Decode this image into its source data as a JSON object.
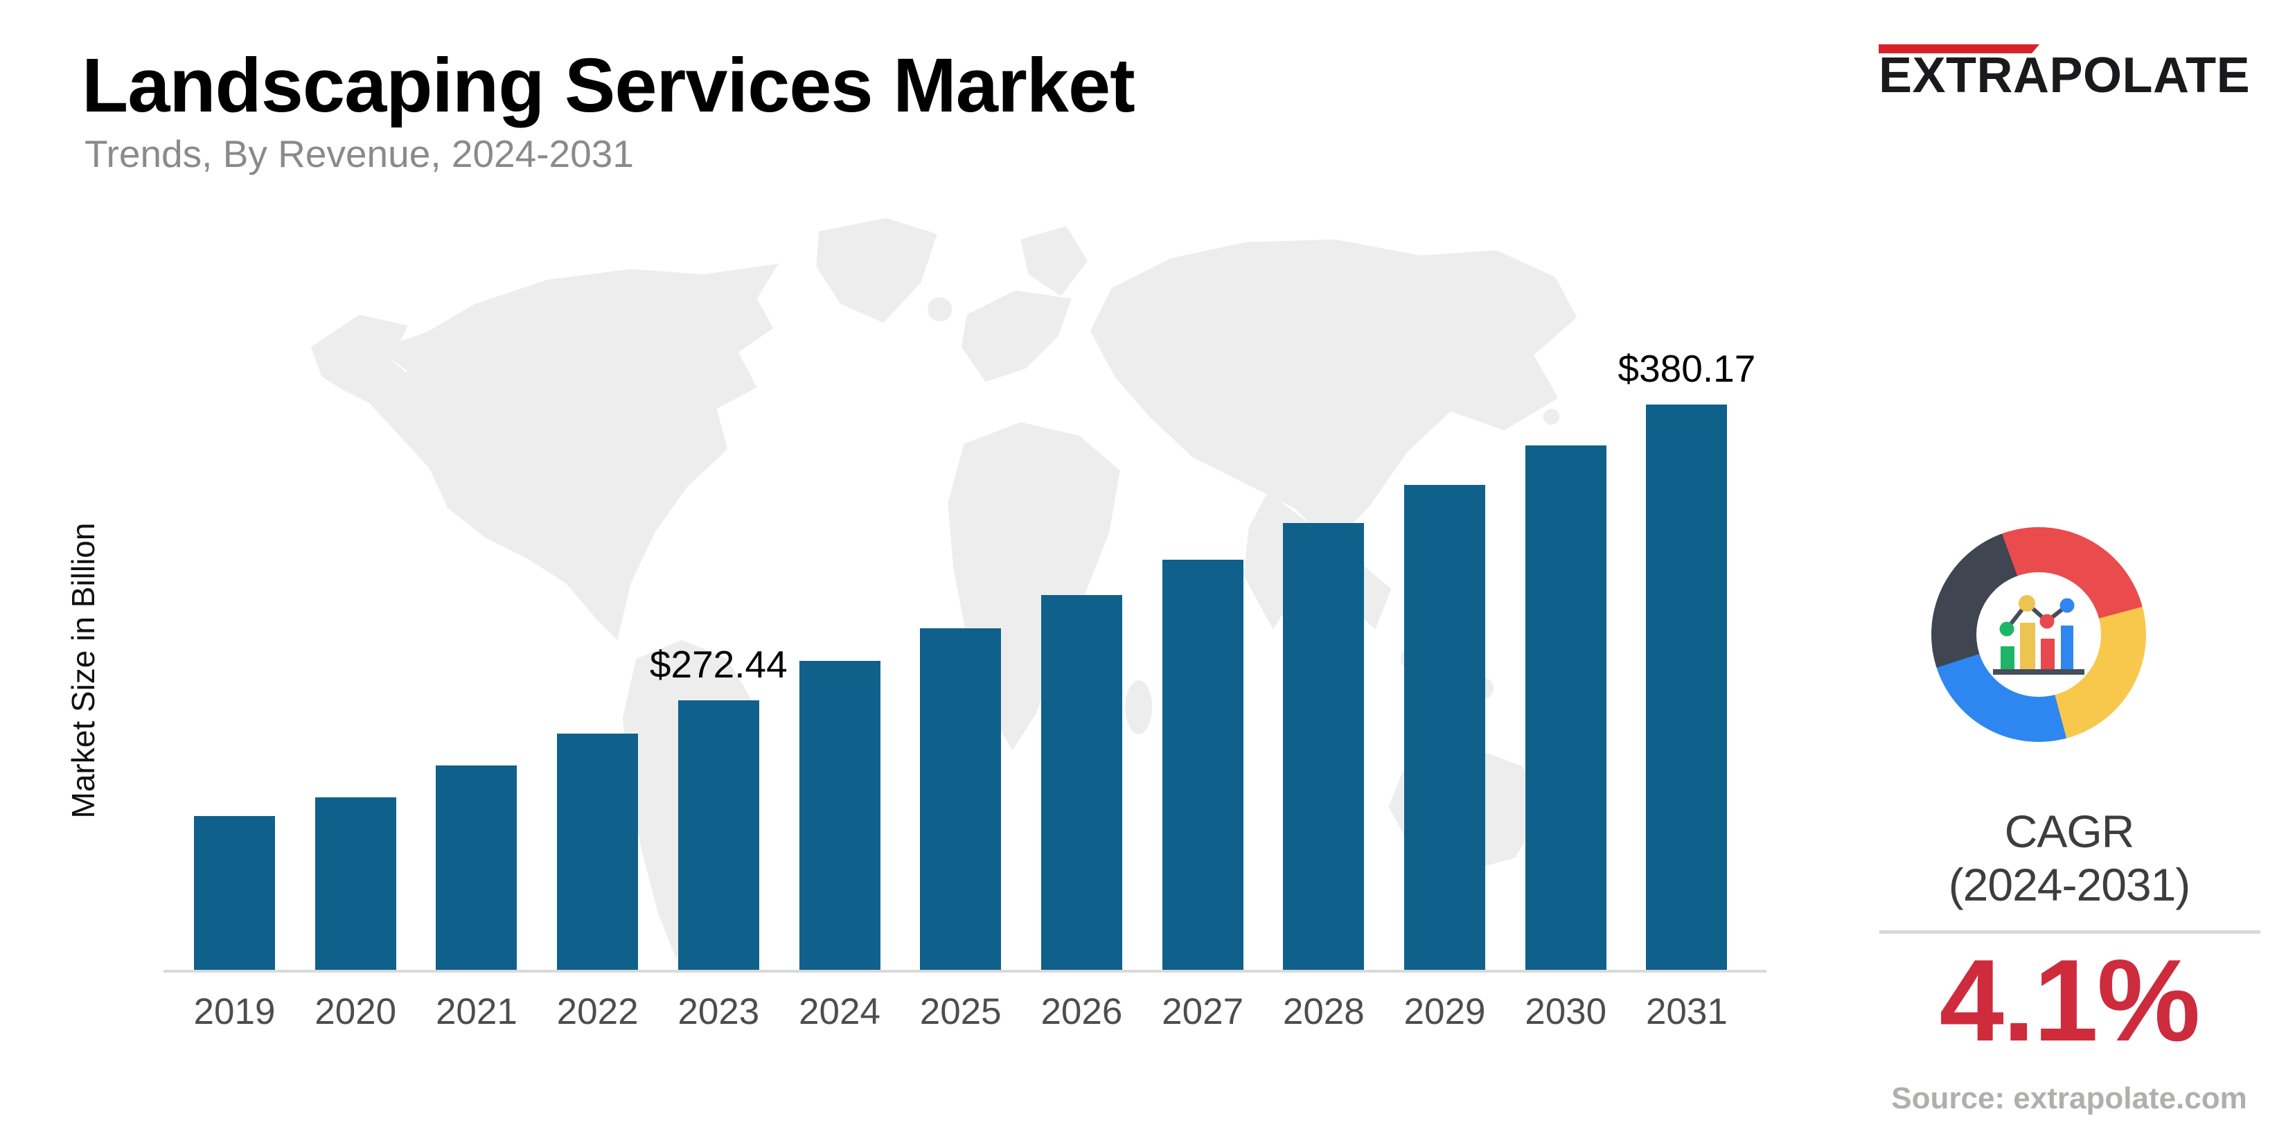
{
  "header": {
    "title": "Landscaping Services Market",
    "subtitle": "Trends, By Revenue, 2024-2031"
  },
  "brand": {
    "logo_text": "EXTRAPOLATE",
    "accent_color": "#d8222b"
  },
  "chart_data": {
    "type": "bar",
    "title": "Landscaping Services Market, Trends, By Revenue, 2024-2031",
    "ylabel": "Market Size in Billion",
    "xlabel": "",
    "unit": "USD Billion",
    "categories": [
      "2019",
      "2020",
      "2021",
      "2022",
      "2023",
      "2024",
      "2025",
      "2026",
      "2027",
      "2028",
      "2029",
      "2030",
      "2031"
    ],
    "values": [
      230.5,
      237.2,
      248.9,
      260.4,
      272.44,
      286.9,
      298.7,
      310.9,
      323.7,
      337.0,
      350.8,
      365.2,
      380.17
    ],
    "point_labels": {
      "2023": "$272.44",
      "2031": "$380.17"
    },
    "bar_color": "#0f618c",
    "axis_line_color": "#d9d9d9",
    "tick_color": "#4d4d4d",
    "grid": false,
    "legend": false,
    "ylim": [
      174,
      390
    ],
    "y_baseline_cropped": true
  },
  "cagr_panel": {
    "label_line1": "CAGR",
    "label_line2": "(2024-2031)",
    "value": "4.1%",
    "value_color": "#ce2b3d"
  },
  "source": {
    "text": "Source: extrapolate.com"
  },
  "donut_icon": {
    "segment_colors": [
      "#ea4b4d",
      "#f8c84d",
      "#2e86f0",
      "#3f4551"
    ],
    "mini_chart_colors": [
      "#1eb566",
      "#ecc44f",
      "#e8494c",
      "#2e86f0"
    ]
  }
}
